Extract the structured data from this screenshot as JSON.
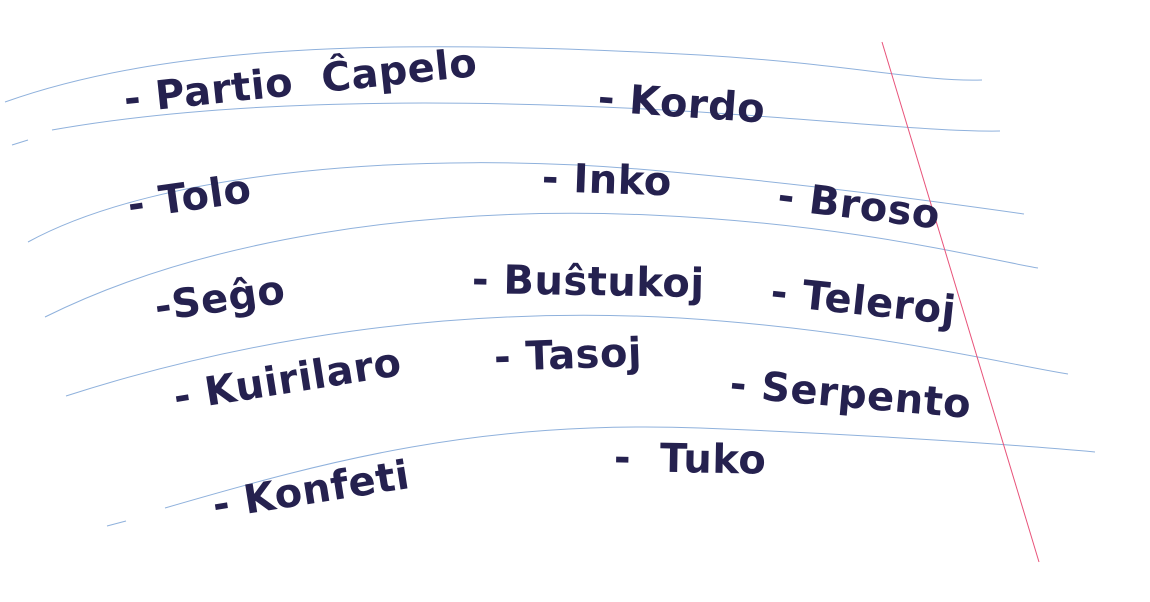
{
  "words": [
    "- Partio  Ĉapelo",
    "- Kordo",
    "- Tolo",
    "- Inko",
    "- Broso",
    "-Seĝo",
    "- Buŝtukoj",
    "- Teleroj",
    "- Kuirilaro",
    "- Tasoj",
    "- Serpento",
    "- Konfeti",
    "-  Tuko"
  ],
  "colors": {
    "text": "#25214f",
    "ruled_line": "#8fb1dc",
    "margin_line": "#e8537a",
    "background": "#ffffff"
  }
}
